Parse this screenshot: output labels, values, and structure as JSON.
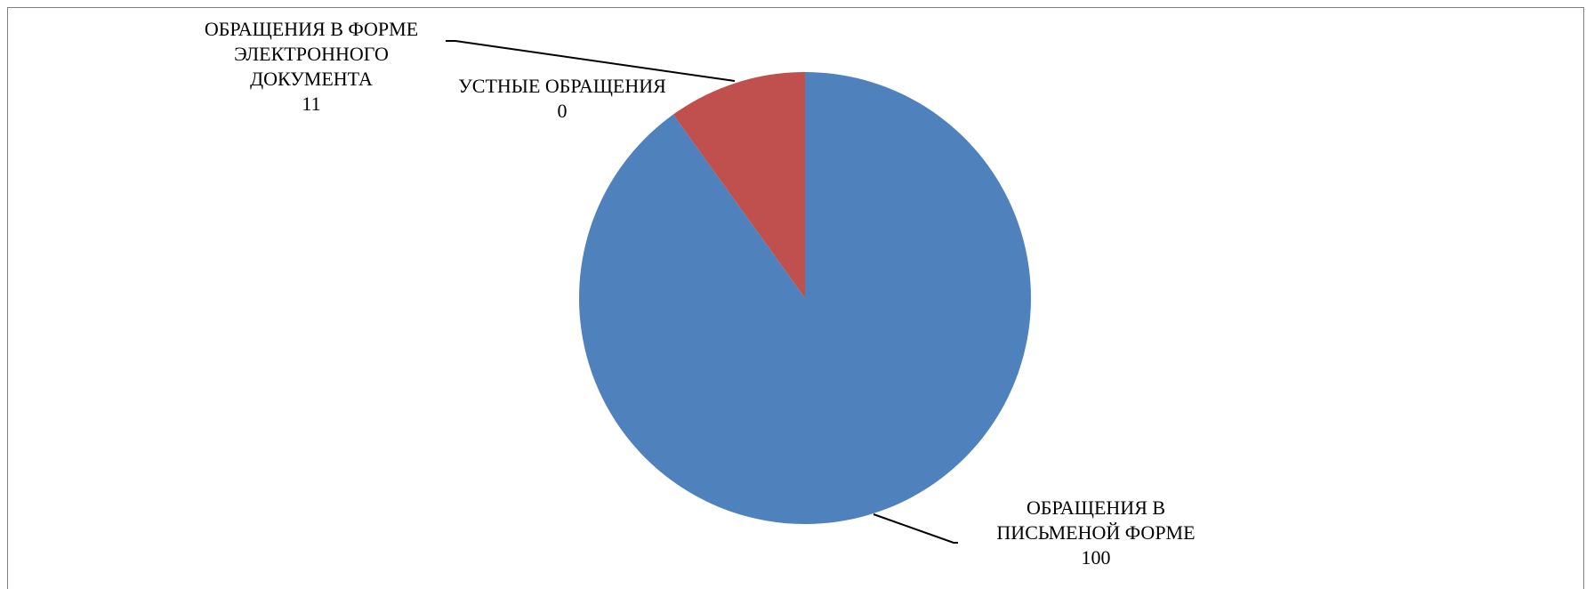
{
  "chart_data": {
    "type": "pie",
    "title": "",
    "start_angle_deg": 0,
    "direction": "clockwise",
    "slices": [
      {
        "label_lines": [
          "ОБРАЩЕНИЯ В",
          "ПИСЬМЕНОЙ ФОРМЕ"
        ],
        "value": 100,
        "value_label": "100",
        "color": "#4f81bd"
      },
      {
        "label_lines": [
          "ОБРАЩЕНИЯ В ФОРМЕ",
          "ЭЛЕКТРОННОГО",
          "ДОКУМЕНТА"
        ],
        "value": 11,
        "value_label": "11",
        "color": "#c0504d"
      },
      {
        "label_lines": [
          "УСТНЫЕ ОБРАЩЕНИЯ"
        ],
        "value": 0,
        "value_label": "0",
        "color": "#9bbb59"
      }
    ],
    "legend": "none",
    "data_labels": "outside with leader lines"
  }
}
